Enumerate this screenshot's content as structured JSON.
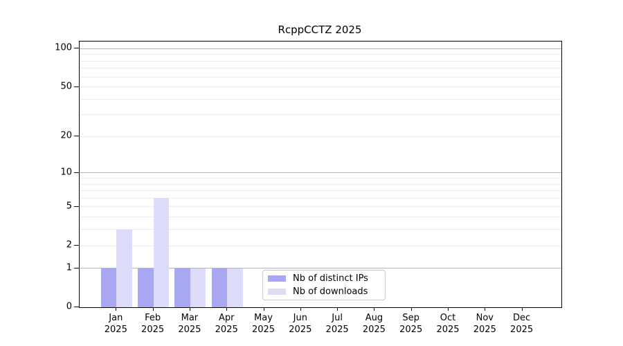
{
  "chart_data": {
    "type": "bar",
    "title": "RcppCCTZ 2025",
    "categories": [
      {
        "month": "Jan",
        "year": "2025"
      },
      {
        "month": "Feb",
        "year": "2025"
      },
      {
        "month": "Mar",
        "year": "2025"
      },
      {
        "month": "Apr",
        "year": "2025"
      },
      {
        "month": "May",
        "year": "2025"
      },
      {
        "month": "Jun",
        "year": "2025"
      },
      {
        "month": "Jul",
        "year": "2025"
      },
      {
        "month": "Aug",
        "year": "2025"
      },
      {
        "month": "Sep",
        "year": "2025"
      },
      {
        "month": "Oct",
        "year": "2025"
      },
      {
        "month": "Nov",
        "year": "2025"
      },
      {
        "month": "Dec",
        "year": "2025"
      }
    ],
    "series": [
      {
        "name": "Nb of distinct IPs",
        "color": "#a7a7f1",
        "values": [
          1,
          1,
          1,
          1,
          0,
          0,
          0,
          0,
          0,
          0,
          0,
          0
        ]
      },
      {
        "name": "Nb of downloads",
        "color": "#dcdcf8",
        "values": [
          3,
          6,
          1,
          1,
          0,
          0,
          0,
          0,
          0,
          0,
          0,
          0
        ]
      }
    ],
    "yscale": "log1p",
    "ylim": [
      0,
      110
    ],
    "yticks": [
      0,
      1,
      2,
      5,
      10,
      20,
      50,
      100
    ],
    "ygrid": {
      "major": [
        1,
        10,
        100
      ],
      "minor": [
        2,
        3,
        4,
        5,
        6,
        7,
        8,
        9,
        20,
        30,
        40,
        50,
        60,
        70,
        80,
        90
      ]
    },
    "legend_position": "inside-bottom-center",
    "colors": {
      "grid_major": "#b5b5b5",
      "grid_minor": "#ededed",
      "axis": "#000000",
      "background": "#ffffff"
    }
  }
}
